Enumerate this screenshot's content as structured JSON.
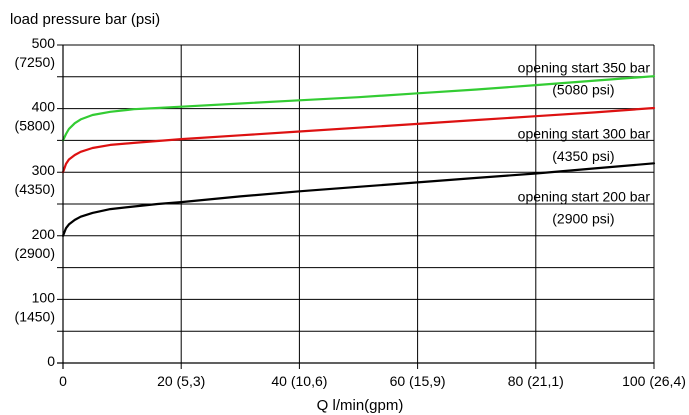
{
  "chart_data": {
    "type": "line",
    "title": "load pressure bar (psi)",
    "xlabel": "Q l/min(gpm)",
    "ylabel": "",
    "xlim": [
      0,
      100
    ],
    "ylim": [
      0,
      500
    ],
    "grid": true,
    "x_ticks": [
      {
        "value": 0,
        "label": "0"
      },
      {
        "value": 20,
        "label": "20 (5,3)"
      },
      {
        "value": 40,
        "label": "40 (10,6)"
      },
      {
        "value": 60,
        "label": "60 (15,9)"
      },
      {
        "value": 80,
        "label": "80 (21,1)"
      },
      {
        "value": 100,
        "label": "100 (26,4)"
      }
    ],
    "y_ticks": [
      {
        "value": 0,
        "label": "0",
        "sub": ""
      },
      {
        "value": 100,
        "label": "100",
        "sub": "(1450)"
      },
      {
        "value": 200,
        "label": "200",
        "sub": "(2900)"
      },
      {
        "value": 300,
        "label": "300",
        "sub": "(4350)"
      },
      {
        "value": 400,
        "label": "400",
        "sub": "(5800)"
      },
      {
        "value": 500,
        "label": "500",
        "sub": "(7250)"
      }
    ],
    "minor_gridlines_y": [
      50,
      150,
      250,
      350,
      450
    ],
    "series": [
      {
        "name": "opening start 350 bar",
        "psi": "(5080 psi)",
        "color": "#33cc33",
        "x": [
          0,
          0.5,
          1,
          2,
          3,
          5,
          8,
          12,
          16,
          20,
          30,
          40,
          50,
          60,
          70,
          80,
          90,
          100
        ],
        "y": [
          350,
          360,
          368,
          377,
          383,
          390,
          395,
          399,
          401,
          403,
          408,
          413,
          418,
          424,
          430,
          437,
          444,
          451
        ]
      },
      {
        "name": "opening start 300 bar",
        "psi": "(4350 psi)",
        "color": "#dd1111",
        "x": [
          0,
          0.5,
          1,
          2,
          3,
          5,
          8,
          12,
          16,
          20,
          30,
          40,
          50,
          60,
          70,
          80,
          90,
          100
        ],
        "y": [
          300,
          313,
          320,
          327,
          332,
          338,
          343,
          346,
          349,
          352,
          358,
          364,
          370,
          376,
          382,
          388,
          394,
          401
        ]
      },
      {
        "name": "opening start 200 bar",
        "psi": "(2900 psi)",
        "color": "#000000",
        "x": [
          0,
          0.5,
          1,
          2,
          3,
          5,
          8,
          12,
          16,
          20,
          30,
          40,
          50,
          60,
          70,
          80,
          90,
          100
        ],
        "y": [
          200,
          212,
          218,
          225,
          230,
          236,
          242,
          246,
          250,
          253,
          262,
          270,
          277,
          284,
          291,
          298,
          306,
          314
        ]
      }
    ],
    "annotations": [
      {
        "text": "opening start 350 bar",
        "x": 100,
        "y": 457,
        "anchor": "end"
      },
      {
        "text": "(5080 psi)",
        "x": 94,
        "y": 422,
        "anchor": "end"
      },
      {
        "text": "opening start 300 bar",
        "x": 100,
        "y": 353,
        "anchor": "end"
      },
      {
        "text": "(4350 psi)",
        "x": 94,
        "y": 318,
        "anchor": "end"
      },
      {
        "text": "opening start 200 bar",
        "x": 100,
        "y": 254,
        "anchor": "end"
      },
      {
        "text": "(2900 psi)",
        "x": 94,
        "y": 219,
        "anchor": "end"
      }
    ]
  }
}
